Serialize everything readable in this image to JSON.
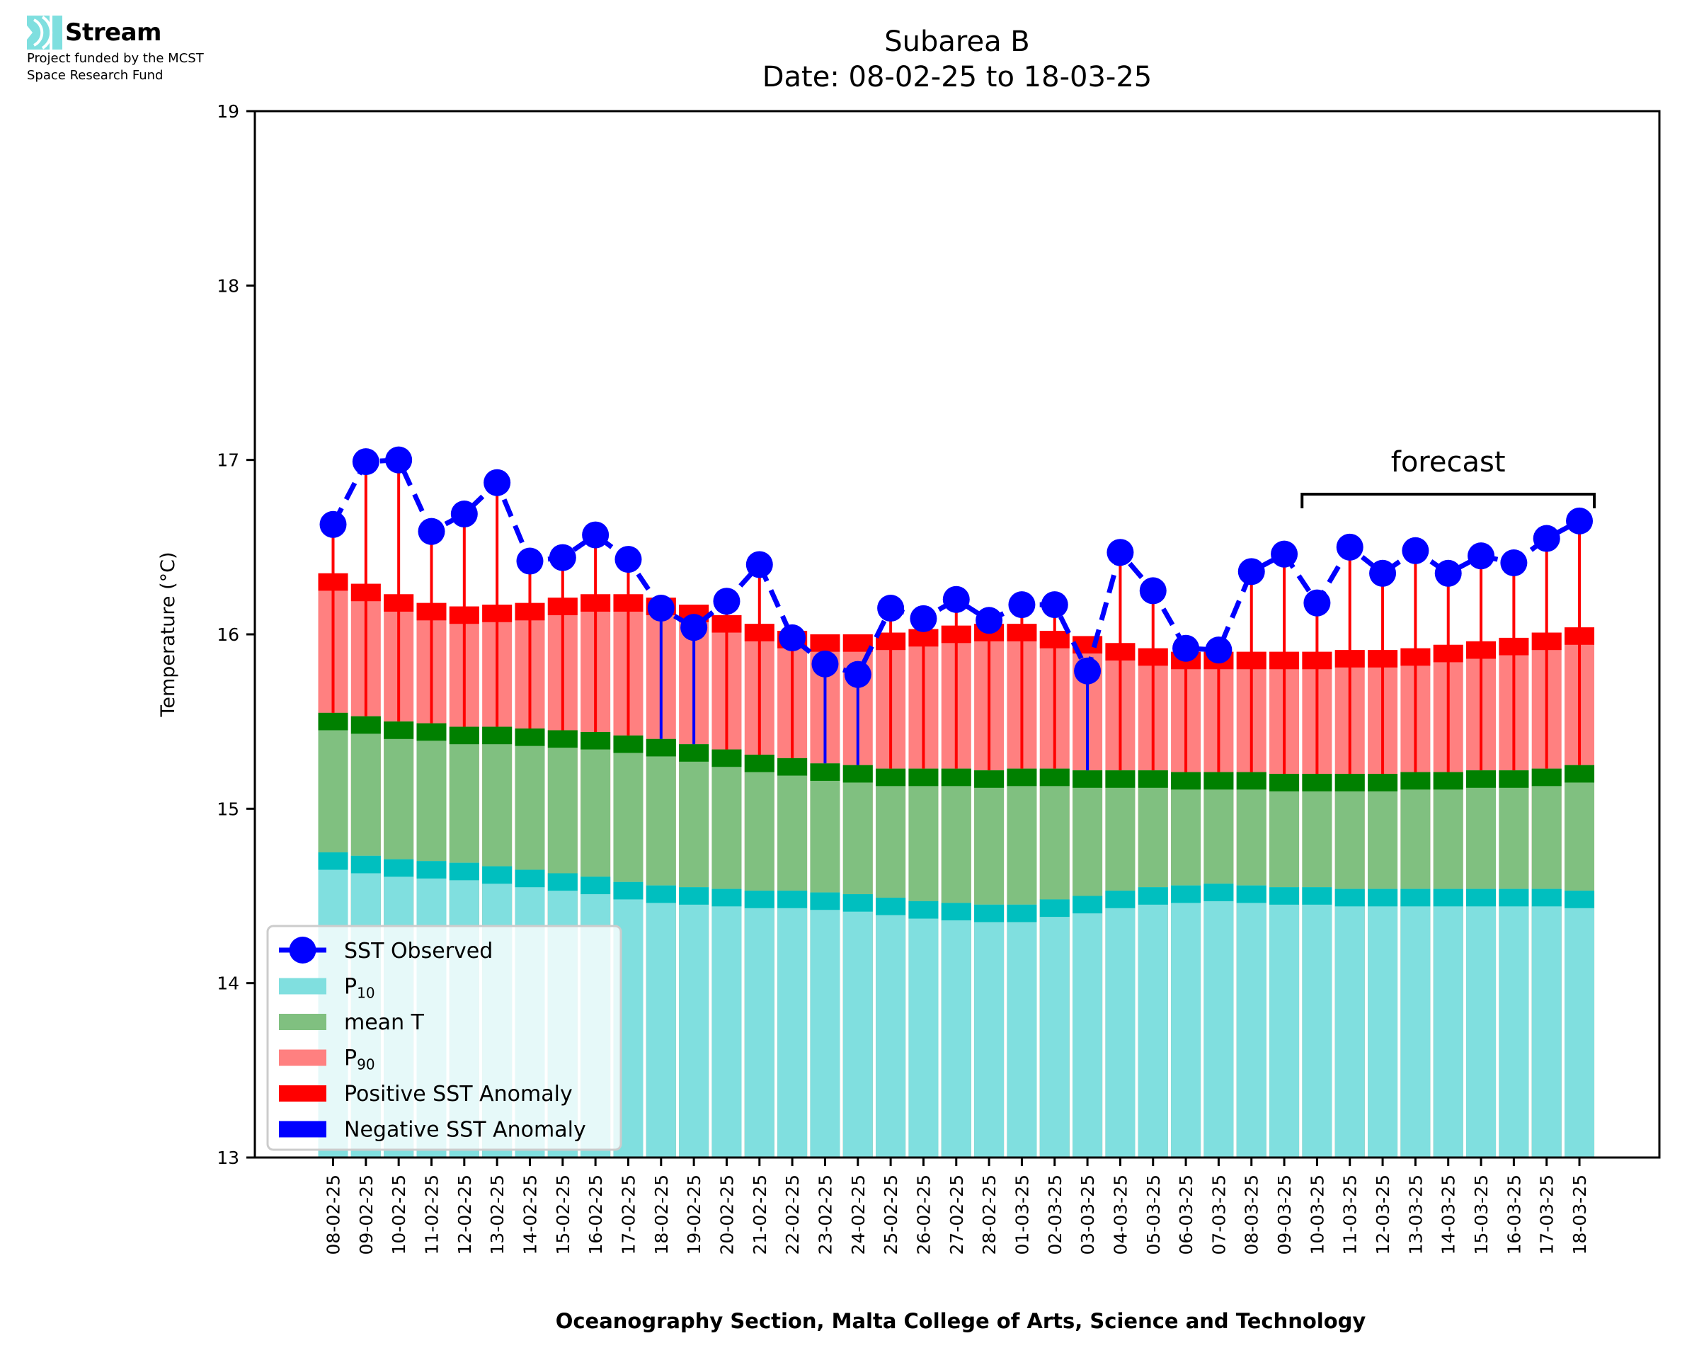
{
  "logo": {
    "name": "Stream",
    "funding_line1": "Project funded by the MCST",
    "funding_line2": "Space Research Fund",
    "icon": "stream-waves-icon",
    "color": "#7fdfdf"
  },
  "chart_data": {
    "type": "bar",
    "title_line1": "Subarea B",
    "title_line2": "Date: 08-02-25 to 18-03-25",
    "xlabel": "Oceanography Section, Malta College of Arts, Science and Technology",
    "ylabel": "Temperature (°C)",
    "ylim": [
      13,
      19
    ],
    "yticks": [
      13,
      14,
      15,
      16,
      17,
      18,
      19
    ],
    "grid": false,
    "legend_position": "lower-left",
    "categories": [
      "08-02-25",
      "09-02-25",
      "10-02-25",
      "11-02-25",
      "12-02-25",
      "13-02-25",
      "14-02-25",
      "15-02-25",
      "16-02-25",
      "17-02-25",
      "18-02-25",
      "19-02-25",
      "20-02-25",
      "21-02-25",
      "22-02-25",
      "23-02-25",
      "24-02-25",
      "25-02-25",
      "26-02-25",
      "27-02-25",
      "28-02-25",
      "01-03-25",
      "02-03-25",
      "03-03-25",
      "04-03-25",
      "05-03-25",
      "06-03-25",
      "07-03-25",
      "08-03-25",
      "09-03-25",
      "10-03-25",
      "11-03-25",
      "12-03-25",
      "13-03-25",
      "14-03-25",
      "15-03-25",
      "16-03-25",
      "17-03-25",
      "18-03-25"
    ],
    "series": [
      {
        "name": "SST Observed",
        "type": "line",
        "style": "dashed",
        "marker": "circle",
        "color": "#0000ff",
        "values": [
          16.63,
          16.99,
          17.0,
          16.59,
          16.69,
          16.87,
          16.42,
          16.44,
          16.57,
          16.43,
          16.15,
          16.04,
          16.19,
          16.4,
          15.98,
          15.83,
          15.77,
          16.15,
          16.09,
          16.2,
          16.08,
          16.17,
          16.17,
          15.79,
          16.47,
          16.25,
          15.92,
          15.91,
          16.36,
          16.46,
          16.18,
          16.5,
          16.35,
          16.48,
          16.35,
          16.45,
          16.41,
          16.55,
          16.65
        ]
      },
      {
        "name": "P10",
        "label_base": "P",
        "label_sub": "10",
        "color": "#80dfdf",
        "cap_color": "#00bfbf",
        "values": [
          14.7,
          14.68,
          14.66,
          14.65,
          14.64,
          14.62,
          14.6,
          14.58,
          14.56,
          14.53,
          14.51,
          14.5,
          14.49,
          14.48,
          14.48,
          14.47,
          14.46,
          14.44,
          14.42,
          14.41,
          14.4,
          14.4,
          14.43,
          14.45,
          14.48,
          14.5,
          14.51,
          14.52,
          14.51,
          14.5,
          14.5,
          14.49,
          14.49,
          14.49,
          14.49,
          14.49,
          14.49,
          14.49,
          14.48
        ]
      },
      {
        "name": "mean T",
        "color": "#80c080",
        "cap_color": "#008000",
        "values": [
          15.5,
          15.48,
          15.45,
          15.44,
          15.42,
          15.42,
          15.41,
          15.4,
          15.39,
          15.37,
          15.35,
          15.32,
          15.29,
          15.26,
          15.24,
          15.21,
          15.2,
          15.18,
          15.18,
          15.18,
          15.17,
          15.18,
          15.18,
          15.17,
          15.17,
          15.17,
          15.16,
          15.16,
          15.16,
          15.15,
          15.15,
          15.15,
          15.15,
          15.16,
          15.16,
          15.17,
          15.17,
          15.18,
          15.2
        ]
      },
      {
        "name": "P90",
        "label_base": "P",
        "label_sub": "90",
        "color": "#ff8080",
        "cap_color": "#ff0000",
        "values": [
          16.3,
          16.24,
          16.18,
          16.13,
          16.11,
          16.12,
          16.13,
          16.16,
          16.18,
          16.18,
          16.16,
          16.12,
          16.06,
          16.01,
          15.97,
          15.95,
          15.95,
          15.96,
          15.98,
          16.0,
          16.01,
          16.01,
          15.97,
          15.94,
          15.9,
          15.87,
          15.85,
          15.85,
          15.85,
          15.85,
          15.85,
          15.86,
          15.86,
          15.87,
          15.89,
          15.91,
          15.93,
          15.96,
          15.99
        ]
      }
    ],
    "cap_halfwidth": 0.05,
    "legend": [
      {
        "label": "SST Observed",
        "kind": "line-marker",
        "color": "#0000ff"
      },
      {
        "label_base": "P",
        "label_sub": "10",
        "kind": "patch",
        "color": "#80dfdf"
      },
      {
        "label": "mean T",
        "kind": "patch",
        "color": "#80c080"
      },
      {
        "label_base": "P",
        "label_sub": "90",
        "kind": "patch",
        "color": "#ff8080"
      },
      {
        "label": "Positive SST Anomaly",
        "kind": "patch",
        "color": "#ff0000"
      },
      {
        "label": "Negative SST Anomaly",
        "kind": "patch",
        "color": "#0000ff"
      }
    ],
    "anomaly_colors": {
      "positive": "#ff0000",
      "negative": "#0000ff"
    },
    "annotations": [
      {
        "text": "forecast",
        "kind": "bracket",
        "from": "10-03-25",
        "to": "18-03-25"
      }
    ]
  }
}
